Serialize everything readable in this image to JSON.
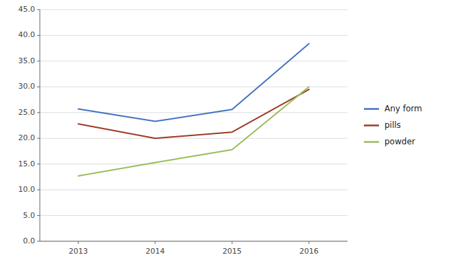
{
  "chart_data": {
    "type": "line",
    "x": [
      2013,
      2014,
      2015,
      2016
    ],
    "series": [
      {
        "name": "Any form",
        "color": "#4472C4",
        "values": [
          25.7,
          23.3,
          25.6,
          38.4
        ]
      },
      {
        "name": "pills",
        "color": "#9E3A26",
        "values": [
          22.8,
          20.0,
          21.2,
          29.5
        ]
      },
      {
        "name": "powder",
        "color": "#9BBB59",
        "values": [
          12.7,
          15.3,
          17.8,
          30.0
        ]
      }
    ],
    "xlim": [
      2012.5,
      2016.5
    ],
    "xticks": [
      2013,
      2014,
      2015,
      2016
    ],
    "ylim": [
      0.0,
      45.0
    ],
    "yticks": [
      {
        "value": 0.0,
        "label": "0.0"
      },
      {
        "value": 5.0,
        "label": "5.0"
      },
      {
        "value": 10.0,
        "label": "10.0"
      },
      {
        "value": 15.0,
        "label": "15.0"
      },
      {
        "value": 20.0,
        "label": "20.0"
      },
      {
        "value": 25.0,
        "label": "25.0"
      },
      {
        "value": 30.0,
        "label": "30.0"
      },
      {
        "value": 35.0,
        "label": "35.0"
      },
      {
        "value": 40.0,
        "label": "40.0"
      },
      {
        "value": 45.0,
        "label": "45.0"
      }
    ],
    "grid": true,
    "legend": "right"
  }
}
